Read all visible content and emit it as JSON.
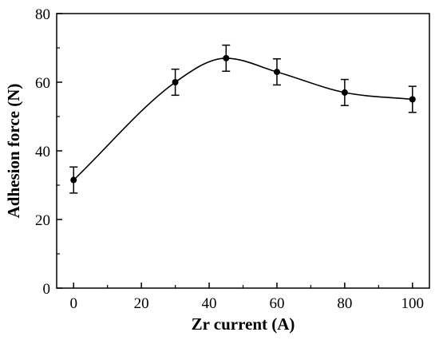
{
  "chart_data": {
    "type": "line",
    "title": "",
    "xlabel": "Zr current (A)",
    "ylabel": "Adhesion force (N)",
    "xlim": [
      -5,
      105
    ],
    "ylim": [
      0,
      80
    ],
    "xticks": [
      0,
      20,
      40,
      60,
      80,
      100
    ],
    "yticks": [
      0,
      20,
      40,
      60,
      80
    ],
    "grid": false,
    "legend": "none",
    "smooth": true,
    "series": [
      {
        "x": [
          0,
          30,
          45,
          60,
          80,
          100
        ],
        "y": [
          31.5,
          60,
          67,
          63,
          57,
          55
        ],
        "error": [
          3.8,
          3.8,
          3.8,
          3.8,
          3.8,
          3.8
        ],
        "color": "#000000",
        "marker": "circle"
      }
    ]
  }
}
